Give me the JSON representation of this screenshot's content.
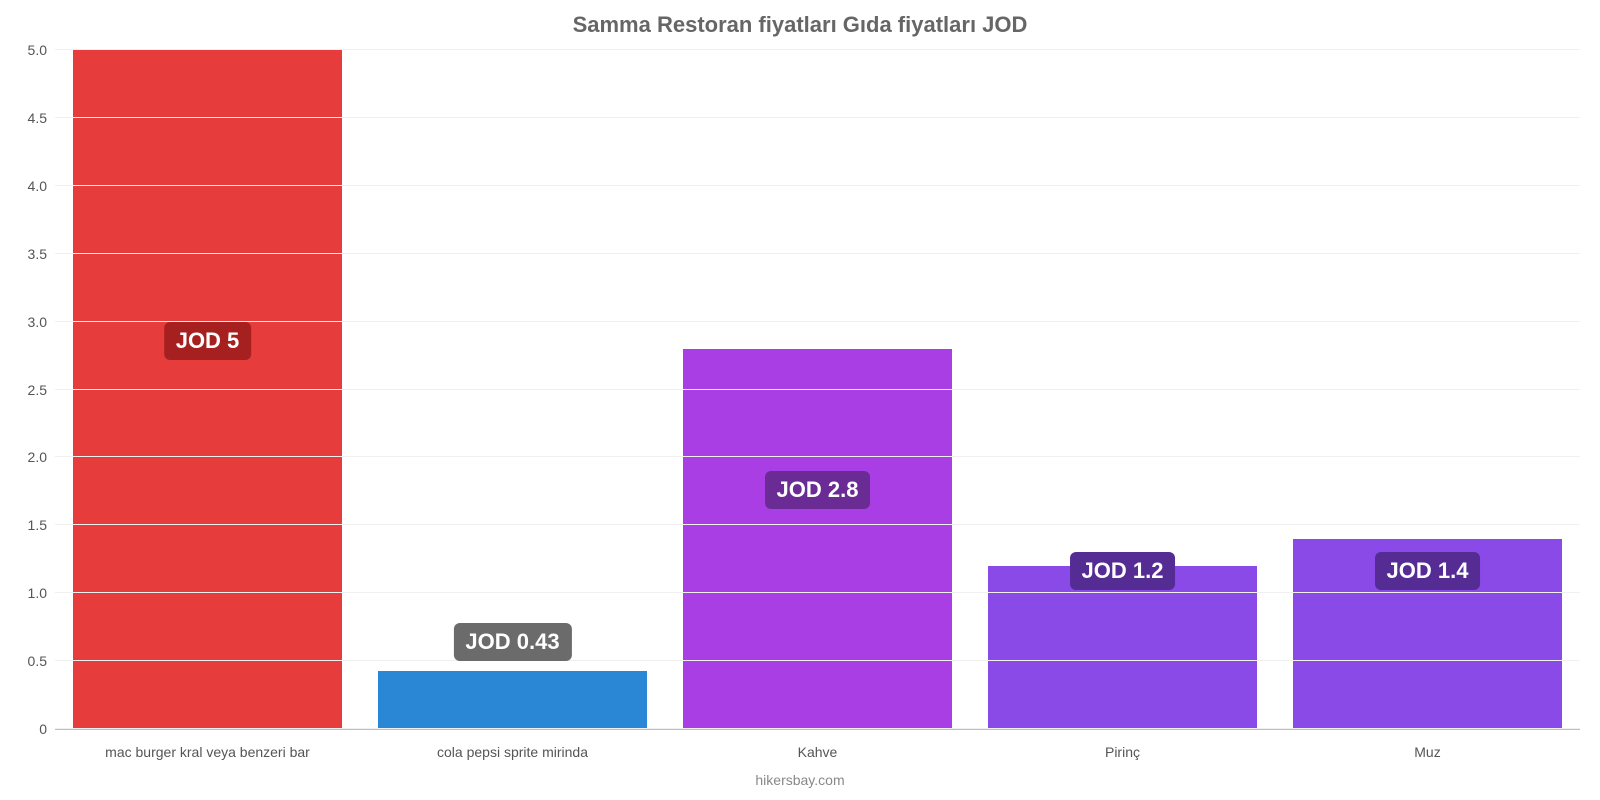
{
  "chart": {
    "type": "bar",
    "title": "Samma Restoran fiyatları Gıda fiyatları JOD",
    "title_fontsize": 22,
    "title_color": "#666666",
    "credit": "hikersbay.com",
    "credit_fontsize": 14,
    "credit_color": "#888888",
    "background_color": "#ffffff",
    "grid_color": "#f0f0f0",
    "axis_color": "#bfbfbf",
    "tick_label_color": "#555555",
    "tick_label_fontsize": 14,
    "xlabel_fontsize": 14,
    "ylim": [
      0,
      5.0
    ],
    "ytick_step": 0.5,
    "yticks": [
      "0",
      "0.5",
      "1.0",
      "1.5",
      "2.0",
      "2.5",
      "3.0",
      "3.5",
      "4.0",
      "4.5",
      "5.0"
    ],
    "bar_width_pct": 88,
    "value_badge_fontsize": 22,
    "value_badge_text_color": "#ffffff",
    "value_badge_radius": 6,
    "categories": [
      {
        "label": "mac burger kral veya benzeri bar",
        "value": 5.0,
        "value_text": "JOD 5",
        "bar_color": "#e73c3c",
        "badge_color": "#a72020",
        "badge_value_y": 2.72
      },
      {
        "label": "cola pepsi sprite mirinda",
        "value": 0.43,
        "value_text": "JOD 0.43",
        "bar_color": "#2a87d6",
        "badge_color": "#6b6b6b",
        "badge_value_y": 0.5
      },
      {
        "label": "Kahve",
        "value": 2.8,
        "value_text": "JOD 2.8",
        "bar_color": "#aa3ee5",
        "badge_color": "#6a2c94",
        "badge_value_y": 1.62
      },
      {
        "label": "Pirinç",
        "value": 1.2,
        "value_text": "JOD 1.2",
        "bar_color": "#8a4ae8",
        "badge_color": "#542c94",
        "badge_value_y": 1.02
      },
      {
        "label": "Muz",
        "value": 1.4,
        "value_text": "JOD 1.4",
        "bar_color": "#8a4ae8",
        "badge_color": "#542c94",
        "badge_value_y": 1.02
      }
    ]
  }
}
